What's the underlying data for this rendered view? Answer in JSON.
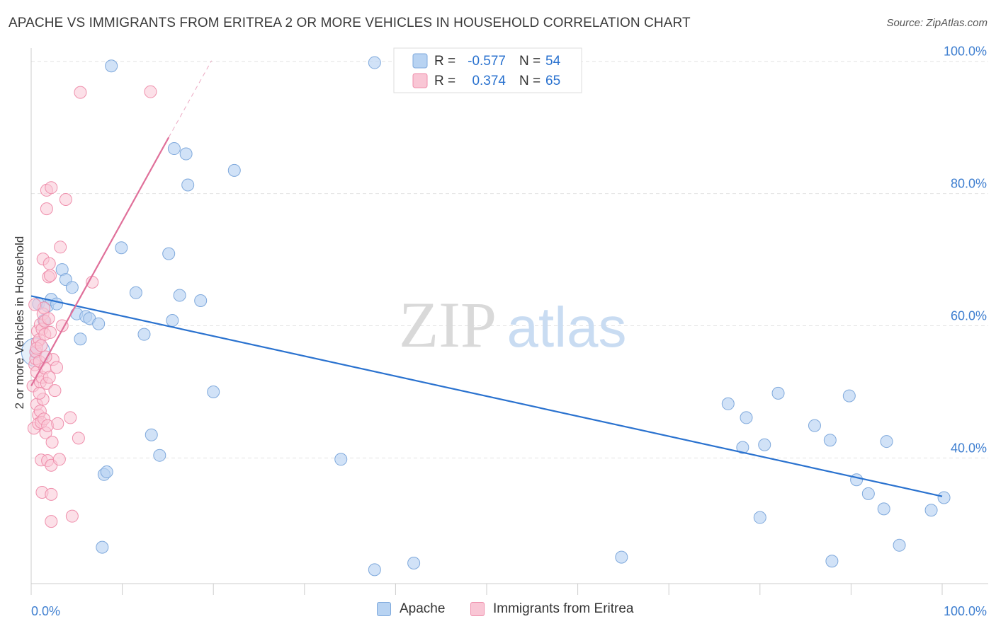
{
  "title": "APACHE VS IMMIGRANTS FROM ERITREA 2 OR MORE VEHICLES IN HOUSEHOLD CORRELATION CHART",
  "source": "Source: ZipAtlas.com",
  "watermark": {
    "zip": "ZIP",
    "atlas": "atlas"
  },
  "colors": {
    "apache_fill": "#b8d3f2",
    "apache_stroke": "#7fa9dc",
    "apache_line": "#2a72cf",
    "eritrea_fill": "#f9c6d5",
    "eritrea_stroke": "#ef8fac",
    "eritrea_line": "#e0709a",
    "axis_label": "#3f7fd0"
  },
  "stats_legend": {
    "rows": [
      {
        "r_label": "R =",
        "r_value": "-0.577",
        "n_label": "N =",
        "n_value": "54"
      },
      {
        "r_label": "R =",
        "r_value": "0.374",
        "n_label": "N =",
        "n_value": "65"
      }
    ]
  },
  "bottom_legend": {
    "series1": "Apache",
    "series2": "Immigrants from Eritrea"
  },
  "chart_data": {
    "type": "scatter",
    "title": "APACHE VS IMMIGRANTS FROM ERITREA 2 OR MORE VEHICLES IN HOUSEHOLD CORRELATION CHART",
    "xlabel": "",
    "ylabel": "2 or more Vehicles in Household",
    "xlim": [
      0,
      100
    ],
    "ylim": [
      21,
      102
    ],
    "x_tick_labels": [
      "0.0%",
      "100.0%"
    ],
    "y_ticks": [
      {
        "value": 40,
        "label": "40.0%"
      },
      {
        "value": 60,
        "label": "60.0%"
      },
      {
        "value": 80,
        "label": "80.0%"
      },
      {
        "value": 100,
        "label": "100.0%"
      }
    ],
    "grid": true,
    "series": [
      {
        "name": "Apache",
        "color": "#b8d3f2",
        "trend": {
          "x": [
            0,
            100
          ],
          "y": [
            64.5,
            34.2
          ]
        },
        "points": [
          [
            0.5,
            56
          ],
          [
            0.8,
            63.3
          ],
          [
            1.4,
            60.8
          ],
          [
            1.8,
            63.0
          ],
          [
            2.2,
            64.0
          ],
          [
            2.8,
            63.3
          ],
          [
            3.4,
            68.5
          ],
          [
            3.8,
            67.0
          ],
          [
            4.5,
            65.8
          ],
          [
            5.4,
            58.0
          ],
          [
            5.0,
            61.8
          ],
          [
            6.0,
            61.4
          ],
          [
            6.4,
            61.1
          ],
          [
            7.4,
            60.3
          ],
          [
            7.8,
            26.5
          ],
          [
            8.0,
            37.5
          ],
          [
            8.3,
            37.9
          ],
          [
            8.8,
            99.3
          ],
          [
            9.9,
            71.8
          ],
          [
            11.5,
            65.0
          ],
          [
            12.4,
            58.7
          ],
          [
            13.2,
            43.5
          ],
          [
            14.1,
            40.4
          ],
          [
            15.1,
            70.9
          ],
          [
            15.5,
            60.8
          ],
          [
            15.7,
            86.8
          ],
          [
            16.3,
            64.6
          ],
          [
            17.0,
            86.0
          ],
          [
            17.2,
            81.3
          ],
          [
            18.6,
            63.8
          ],
          [
            20.0,
            50.0
          ],
          [
            22.3,
            83.5
          ],
          [
            34.0,
            39.8
          ],
          [
            37.7,
            99.8
          ],
          [
            37.7,
            23.1
          ],
          [
            42.0,
            24.1
          ],
          [
            64.8,
            25.0
          ],
          [
            76.5,
            48.2
          ],
          [
            78.1,
            41.6
          ],
          [
            78.5,
            46.1
          ],
          [
            80.0,
            31.0
          ],
          [
            80.5,
            42.0
          ],
          [
            82.0,
            49.8
          ],
          [
            86.0,
            44.9
          ],
          [
            87.7,
            42.7
          ],
          [
            87.9,
            24.4
          ],
          [
            89.8,
            49.4
          ],
          [
            90.6,
            36.7
          ],
          [
            91.9,
            34.6
          ],
          [
            93.6,
            32.3
          ],
          [
            93.9,
            42.5
          ],
          [
            95.3,
            26.8
          ],
          [
            98.8,
            32.1
          ],
          [
            100.2,
            34.0
          ]
        ]
      },
      {
        "name": "Immigrants from Eritrea",
        "color": "#f9c6d5",
        "trend": {
          "x": [
            0,
            15.1
          ],
          "y": [
            50.9,
            88.5
          ],
          "ext_x": [
            15.1,
            19.8
          ],
          "ext_y": [
            88.5,
            100.1
          ]
        },
        "points": [
          [
            0.2,
            50.9
          ],
          [
            0.3,
            44.5
          ],
          [
            0.4,
            54.1
          ],
          [
            0.5,
            55.0
          ],
          [
            0.5,
            56.1
          ],
          [
            0.6,
            48.1
          ],
          [
            0.6,
            53.0
          ],
          [
            0.7,
            57.5
          ],
          [
            0.7,
            59.2
          ],
          [
            0.8,
            46.5
          ],
          [
            0.8,
            45.2
          ],
          [
            0.9,
            57.9
          ],
          [
            0.9,
            54.6
          ],
          [
            1.0,
            60.2
          ],
          [
            1.0,
            51.5
          ],
          [
            1.0,
            47.1
          ],
          [
            1.1,
            45.4
          ],
          [
            1.1,
            39.7
          ],
          [
            1.2,
            59.5
          ],
          [
            1.2,
            52.2
          ],
          [
            1.2,
            34.8
          ],
          [
            1.3,
            61.8
          ],
          [
            1.3,
            70.1
          ],
          [
            1.3,
            48.9
          ],
          [
            1.4,
            45.9
          ],
          [
            1.4,
            62.7
          ],
          [
            1.5,
            58.7
          ],
          [
            1.5,
            53.6
          ],
          [
            1.5,
            60.7
          ],
          [
            1.6,
            43.8
          ],
          [
            1.7,
            51.3
          ],
          [
            1.7,
            80.5
          ],
          [
            1.7,
            77.7
          ],
          [
            1.8,
            44.9
          ],
          [
            1.8,
            39.6
          ],
          [
            1.9,
            67.4
          ],
          [
            1.9,
            61.1
          ],
          [
            2.0,
            52.2
          ],
          [
            2.0,
            69.4
          ],
          [
            2.1,
            67.6
          ],
          [
            2.1,
            59.0
          ],
          [
            2.2,
            80.9
          ],
          [
            2.2,
            38.9
          ],
          [
            2.2,
            30.4
          ],
          [
            2.2,
            34.5
          ],
          [
            2.3,
            42.4
          ],
          [
            2.4,
            54.9
          ],
          [
            2.6,
            50.2
          ],
          [
            2.8,
            53.7
          ],
          [
            2.9,
            45.2
          ],
          [
            3.1,
            39.8
          ],
          [
            3.2,
            71.9
          ],
          [
            3.4,
            60.0
          ],
          [
            3.8,
            79.1
          ],
          [
            4.3,
            46.1
          ],
          [
            4.5,
            31.2
          ],
          [
            5.2,
            43.0
          ],
          [
            5.4,
            95.3
          ],
          [
            6.7,
            66.6
          ],
          [
            13.1,
            95.4
          ],
          [
            0.4,
            63.2
          ],
          [
            0.6,
            56.6
          ],
          [
            0.9,
            49.8
          ],
          [
            1.6,
            55.3
          ],
          [
            1.1,
            57.0
          ]
        ]
      }
    ]
  }
}
